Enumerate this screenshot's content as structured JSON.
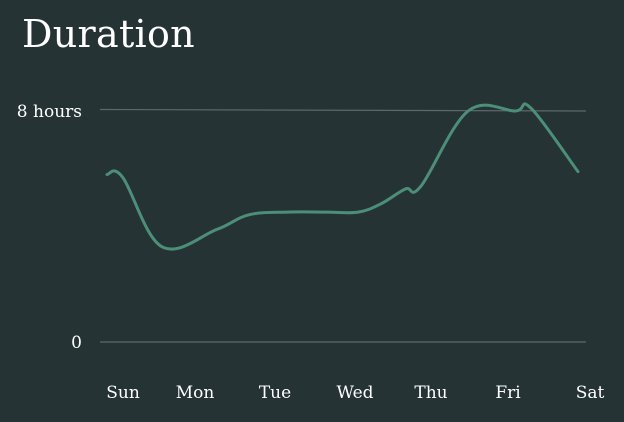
{
  "chart_data": {
    "type": "line",
    "title": "Duration",
    "categories": [
      "Sun",
      "Mon",
      "Tue",
      "Wed",
      "Thu",
      "Fri",
      "Sat"
    ],
    "y_ticks": [
      {
        "value": 0,
        "label": "0"
      },
      {
        "value": 8,
        "label": "8 hours"
      }
    ],
    "ylim": [
      0,
      8
    ],
    "grid": true,
    "legend": "none",
    "color": "#4c8f78",
    "series": [
      {
        "points": [
          {
            "x": 0.0,
            "y": 5.8
          },
          {
            "x": 0.2,
            "y": 5.7
          },
          {
            "x": 0.7,
            "y": 3.3
          },
          {
            "x": 1.4,
            "y": 3.9
          },
          {
            "x": 1.8,
            "y": 4.4
          },
          {
            "x": 2.3,
            "y": 4.5
          },
          {
            "x": 2.8,
            "y": 4.5
          },
          {
            "x": 3.2,
            "y": 4.5
          },
          {
            "x": 3.5,
            "y": 4.8
          },
          {
            "x": 3.8,
            "y": 5.3
          },
          {
            "x": 4.0,
            "y": 5.4
          },
          {
            "x": 4.6,
            "y": 8.0
          },
          {
            "x": 5.2,
            "y": 8.0
          },
          {
            "x": 5.4,
            "y": 8.1
          },
          {
            "x": 6.0,
            "y": 5.9
          }
        ]
      }
    ]
  }
}
